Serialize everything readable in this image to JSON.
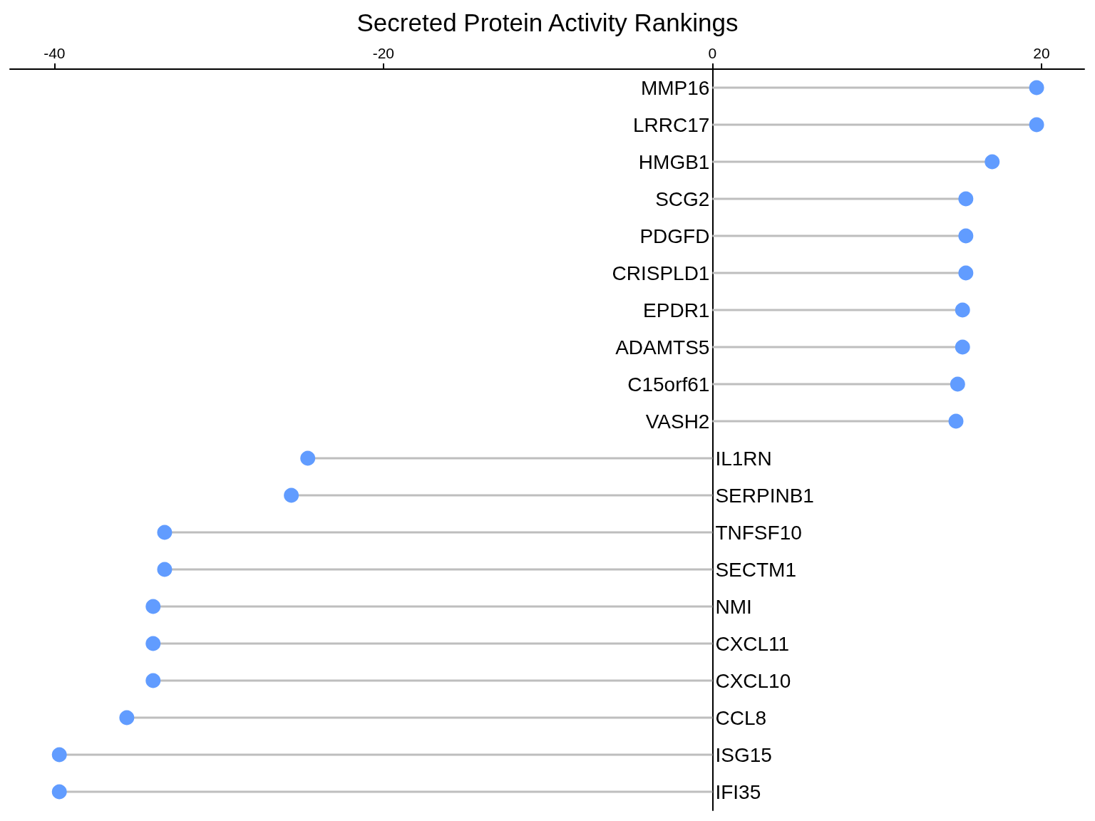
{
  "chart_data": {
    "type": "lollipop",
    "title": "Secreted Protein Activity Rankings",
    "orientation": "horizontal",
    "categories": [
      "MMP16",
      "LRRC17",
      "HMGB1",
      "SCG2",
      "PDGFD",
      "CRISPLD1",
      "EPDR1",
      "ADAMTS5",
      "C15orf61",
      "VASH2",
      "IL1RN",
      "SERPINB1",
      "TNFSF10",
      "SECTM1",
      "NMI",
      "CXCL11",
      "CXCL10",
      "CCL8",
      "ISG15",
      "IFI35"
    ],
    "values": [
      19.7,
      19.7,
      17.0,
      15.4,
      15.4,
      15.4,
      15.2,
      15.2,
      14.9,
      14.8,
      -24.6,
      -25.6,
      -33.3,
      -33.3,
      -34.0,
      -34.0,
      -34.0,
      -35.6,
      -39.7,
      -39.7
    ],
    "color": "#619cff",
    "xlim": [
      -42.7,
      22.6
    ],
    "xticks": [
      -40,
      -20,
      0,
      20
    ],
    "marker": "circle"
  }
}
